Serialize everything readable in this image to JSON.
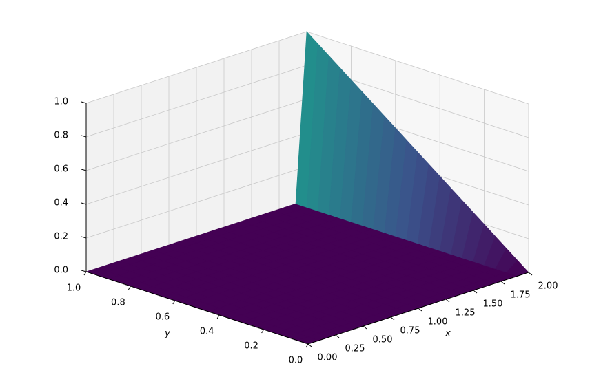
{
  "chart_data": {
    "type": "surface3d",
    "colormap": "viridis",
    "grid": true,
    "x_label": "x",
    "y_label": "y",
    "x": [
      0,
      0.1,
      0.2,
      0.3,
      0.4,
      0.5,
      0.6,
      0.7,
      0.8,
      0.9,
      1.0,
      1.1,
      1.2,
      1.3,
      1.4,
      1.5,
      1.6,
      1.7,
      1.8,
      1.9,
      2.0
    ],
    "y": [
      0,
      0.05,
      0.1,
      0.15,
      0.2,
      0.25,
      0.3,
      0.35,
      0.4,
      0.45,
      0.5,
      0.55,
      0.6,
      0.65,
      0.7,
      0.75,
      0.8,
      0.85,
      0.9,
      0.95,
      1.0
    ],
    "z": [
      [
        0,
        0,
        0,
        0,
        0,
        0,
        0,
        0,
        0,
        0,
        0,
        0,
        0,
        0,
        0,
        0,
        0,
        0,
        0,
        0,
        0
      ],
      [
        0,
        0,
        0,
        0,
        0,
        0,
        0,
        0,
        0,
        0,
        0,
        0,
        0,
        0,
        0,
        0,
        0,
        0,
        0,
        0,
        0.05
      ],
      [
        0,
        0,
        0,
        0,
        0,
        0,
        0,
        0,
        0,
        0,
        0,
        0,
        0,
        0,
        0,
        0,
        0,
        0,
        0,
        0,
        0.1
      ],
      [
        0,
        0,
        0,
        0,
        0,
        0,
        0,
        0,
        0,
        0,
        0,
        0,
        0,
        0,
        0,
        0,
        0,
        0,
        0,
        0,
        0.15
      ],
      [
        0,
        0,
        0,
        0,
        0,
        0,
        0,
        0,
        0,
        0,
        0,
        0,
        0,
        0,
        0,
        0,
        0,
        0,
        0,
        0,
        0.2
      ],
      [
        0,
        0,
        0,
        0,
        0,
        0,
        0,
        0,
        0,
        0,
        0,
        0,
        0,
        0,
        0,
        0,
        0,
        0,
        0,
        0,
        0.25
      ],
      [
        0,
        0,
        0,
        0,
        0,
        0,
        0,
        0,
        0,
        0,
        0,
        0,
        0,
        0,
        0,
        0,
        0,
        0,
        0,
        0,
        0.3
      ],
      [
        0,
        0,
        0,
        0,
        0,
        0,
        0,
        0,
        0,
        0,
        0,
        0,
        0,
        0,
        0,
        0,
        0,
        0,
        0,
        0,
        0.35
      ],
      [
        0,
        0,
        0,
        0,
        0,
        0,
        0,
        0,
        0,
        0,
        0,
        0,
        0,
        0,
        0,
        0,
        0,
        0,
        0,
        0,
        0.4
      ],
      [
        0,
        0,
        0,
        0,
        0,
        0,
        0,
        0,
        0,
        0,
        0,
        0,
        0,
        0,
        0,
        0,
        0,
        0,
        0,
        0,
        0.45
      ],
      [
        0,
        0,
        0,
        0,
        0,
        0,
        0,
        0,
        0,
        0,
        0,
        0,
        0,
        0,
        0,
        0,
        0,
        0,
        0,
        0,
        0.5
      ],
      [
        0,
        0,
        0,
        0,
        0,
        0,
        0,
        0,
        0,
        0,
        0,
        0,
        0,
        0,
        0,
        0,
        0,
        0,
        0,
        0,
        0.55
      ],
      [
        0,
        0,
        0,
        0,
        0,
        0,
        0,
        0,
        0,
        0,
        0,
        0,
        0,
        0,
        0,
        0,
        0,
        0,
        0,
        0,
        0.6
      ],
      [
        0,
        0,
        0,
        0,
        0,
        0,
        0,
        0,
        0,
        0,
        0,
        0,
        0,
        0,
        0,
        0,
        0,
        0,
        0,
        0,
        0.65
      ],
      [
        0,
        0,
        0,
        0,
        0,
        0,
        0,
        0,
        0,
        0,
        0,
        0,
        0,
        0,
        0,
        0,
        0,
        0,
        0,
        0,
        0.7
      ],
      [
        0,
        0,
        0,
        0,
        0,
        0,
        0,
        0,
        0,
        0,
        0,
        0,
        0,
        0,
        0,
        0,
        0,
        0,
        0,
        0,
        0.75
      ],
      [
        0,
        0,
        0,
        0,
        0,
        0,
        0,
        0,
        0,
        0,
        0,
        0,
        0,
        0,
        0,
        0,
        0,
        0,
        0,
        0,
        0.8
      ],
      [
        0,
        0,
        0,
        0,
        0,
        0,
        0,
        0,
        0,
        0,
        0,
        0,
        0,
        0,
        0,
        0,
        0,
        0,
        0,
        0,
        0.85
      ],
      [
        0,
        0,
        0,
        0,
        0,
        0,
        0,
        0,
        0,
        0,
        0,
        0,
        0,
        0,
        0,
        0,
        0,
        0,
        0,
        0,
        0.9
      ],
      [
        0,
        0,
        0,
        0,
        0,
        0,
        0,
        0,
        0,
        0,
        0,
        0,
        0,
        0,
        0,
        0,
        0,
        0,
        0,
        0,
        0.95
      ],
      [
        0,
        0,
        0,
        0,
        0,
        0,
        0,
        0,
        0,
        0,
        0,
        0,
        0,
        0,
        0,
        0,
        0,
        0,
        0,
        0,
        1.0
      ]
    ],
    "xlim": [
      0,
      2
    ],
    "ylim": [
      0,
      1
    ],
    "zlim": [
      0,
      1
    ],
    "xticks": [
      {
        "value": 0,
        "label": "0.00"
      },
      {
        "value": 0.25,
        "label": "0.25"
      },
      {
        "value": 0.5,
        "label": "0.50"
      },
      {
        "value": 0.75,
        "label": "0.75"
      },
      {
        "value": 1,
        "label": "1.00"
      },
      {
        "value": 1.25,
        "label": "1.25"
      },
      {
        "value": 1.5,
        "label": "1.50"
      },
      {
        "value": 1.75,
        "label": "1.75"
      },
      {
        "value": 2,
        "label": "2.00"
      }
    ],
    "yticks": [
      {
        "value": 0,
        "label": "0.0"
      },
      0.2,
      0.4,
      0.6,
      0.8,
      {
        "value": 1,
        "label": "1.0"
      }
    ],
    "zticks": [
      {
        "value": 0,
        "label": "0.0"
      },
      0.2,
      0.4,
      0.6,
      0.8,
      {
        "value": 1,
        "label": "1.0"
      }
    ]
  }
}
